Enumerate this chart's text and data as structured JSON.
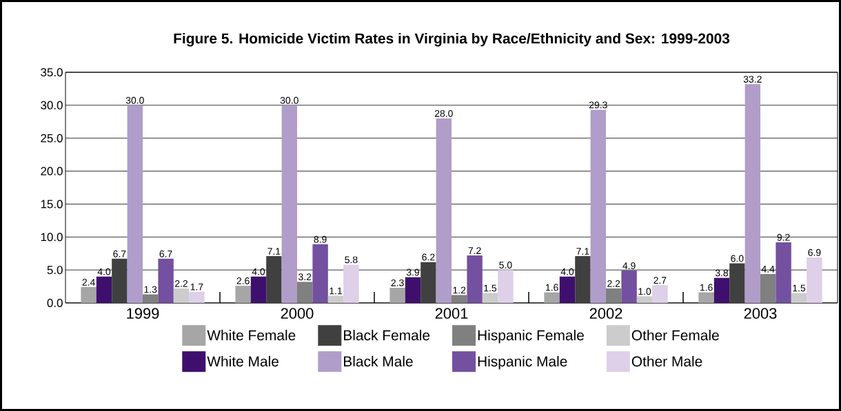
{
  "chart_data": {
    "type": "bar",
    "title": "Figure 5. Homicide Victim Rates in Virginia by Race/Ethnicity and Sex: 1999-2003",
    "categories": [
      "1999",
      "2000",
      "2001",
      "2002",
      "2003"
    ],
    "ylim": [
      0,
      35
    ],
    "yticks": [
      {
        "value": 0,
        "label": "0.0"
      },
      {
        "value": 5,
        "label": "5.0"
      },
      {
        "value": 10,
        "label": "10.0"
      },
      {
        "value": 15,
        "label": "15.0"
      },
      {
        "value": 20,
        "label": "20.0"
      },
      {
        "value": 25,
        "label": "25.0"
      },
      {
        "value": 30,
        "label": "30.0"
      },
      {
        "value": 35,
        "label": "35.0"
      }
    ],
    "grid": "y",
    "legend": "bottom",
    "series": [
      {
        "name": "White Female",
        "color": "#a6a6a6",
        "values": [
          2.4,
          2.6,
          2.3,
          1.6,
          1.6
        ],
        "value_labels": [
          "2.4",
          "2.6",
          "2.3",
          "1.6",
          "1.6"
        ]
      },
      {
        "name": "White Male",
        "color": "#3f0f6e",
        "values": [
          4.0,
          4.0,
          3.9,
          4.0,
          3.8
        ],
        "value_labels": [
          "4.0",
          "4.0",
          "3.9",
          "4.0",
          "3.8"
        ]
      },
      {
        "name": "Black Female",
        "color": "#404040",
        "values": [
          6.7,
          7.1,
          6.2,
          7.1,
          6.0
        ],
        "value_labels": [
          "6.7",
          "7.1",
          "6.2",
          "7.1",
          "6.0"
        ]
      },
      {
        "name": "Black Male",
        "color": "#b09dc9",
        "values": [
          30.0,
          30.0,
          28.0,
          29.3,
          33.2
        ],
        "value_labels": [
          "30.0",
          "30.0",
          "28.0",
          "29.3",
          "33.2"
        ]
      },
      {
        "name": "Hispanic Female",
        "color": "#808080",
        "values": [
          1.3,
          3.2,
          1.2,
          2.2,
          4.4
        ],
        "value_labels": [
          "1.3",
          "3.2",
          "1.2",
          "2.2",
          "4.4"
        ]
      },
      {
        "name": "Hispanic Male",
        "color": "#7350a0",
        "values": [
          6.7,
          8.9,
          7.2,
          4.9,
          9.2
        ],
        "value_labels": [
          "6.7",
          "8.9",
          "7.2",
          "4.9",
          "9.2"
        ]
      },
      {
        "name": "Other Female",
        "color": "#cccccc",
        "values": [
          2.2,
          1.1,
          1.5,
          1.0,
          1.5
        ],
        "value_labels": [
          "2.2",
          "1.1",
          "1.5",
          "1.0",
          "1.5"
        ]
      },
      {
        "name": "Other Male",
        "color": "#ddd0e8",
        "values": [
          1.7,
          5.8,
          5.0,
          2.7,
          6.9
        ],
        "value_labels": [
          "1.7",
          "5.8",
          "5.0",
          "2.7",
          "6.9"
        ]
      }
    ]
  }
}
